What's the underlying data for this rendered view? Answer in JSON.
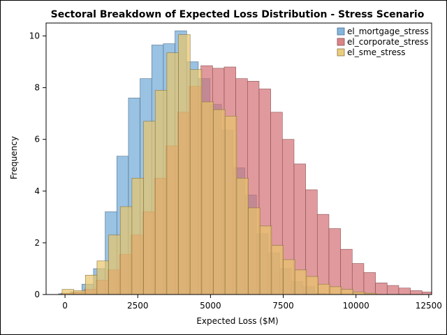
{
  "chart_data": {
    "type": "histogram",
    "title": "Sectoral Breakdown of Expected Loss Distribution - Stress Scenario",
    "xlabel": "Expected Loss ($M)",
    "ylabel": "Frequency",
    "xlim": [
      -650,
      12600
    ],
    "ylim": [
      0,
      10.5
    ],
    "xticks": [
      0,
      2500,
      5000,
      7500,
      10000,
      12500
    ],
    "xtick_labels": [
      "0",
      "2500",
      "5000",
      "7500",
      "10000",
      "12500"
    ],
    "yticks": [
      0,
      2,
      4,
      6,
      8,
      10
    ],
    "ytick_labels": [
      "0",
      "2",
      "4",
      "6",
      "8",
      "10"
    ],
    "legend_position": "top-right",
    "grid": false,
    "series": [
      {
        "name": "el_mortgage_stress",
        "color": "#6fa8d6",
        "stroke": "#4f6f8f",
        "x_start": -620,
        "bin_width": 400,
        "values": [
          0,
          0.03,
          0.1,
          0.4,
          1.0,
          3.2,
          5.35,
          7.6,
          8.35,
          9.65,
          9.7,
          10.2,
          9.0,
          8.35,
          7.35,
          6.35,
          4.9,
          3.85,
          2.35,
          1.6,
          1.0,
          0.5,
          0.3,
          0.05
        ]
      },
      {
        "name": "el_corporate_stress",
        "color": "#d36f73",
        "stroke": "#8a4f52",
        "x_start": -530,
        "bin_width": 400,
        "values": [
          0,
          0.05,
          0.1,
          0.2,
          0.55,
          0.95,
          1.55,
          2.3,
          3.2,
          4.5,
          5.75,
          7.05,
          8.05,
          8.85,
          8.75,
          8.8,
          8.35,
          8.25,
          7.95,
          7.05,
          6.0,
          5.05,
          4.05,
          3.1,
          2.55,
          1.75,
          1.2,
          0.85,
          0.45,
          0.35,
          0.25,
          0.15,
          0.1,
          0.02,
          0.0,
          0.03
        ]
      },
      {
        "name": "el_sme_stress",
        "color": "#e8c46a",
        "stroke": "#8a7640",
        "x_start": -100,
        "bin_width": 400,
        "values": [
          0.2,
          0.15,
          0.75,
          1.3,
          2.3,
          3.4,
          4.5,
          6.7,
          7.9,
          9.35,
          10.05,
          8.7,
          7.45,
          7.15,
          6.9,
          4.5,
          3.35,
          2.65,
          1.9,
          1.35,
          0.95,
          0.7,
          0.4,
          0.3,
          0.2,
          0.1,
          0.05
        ]
      }
    ]
  }
}
